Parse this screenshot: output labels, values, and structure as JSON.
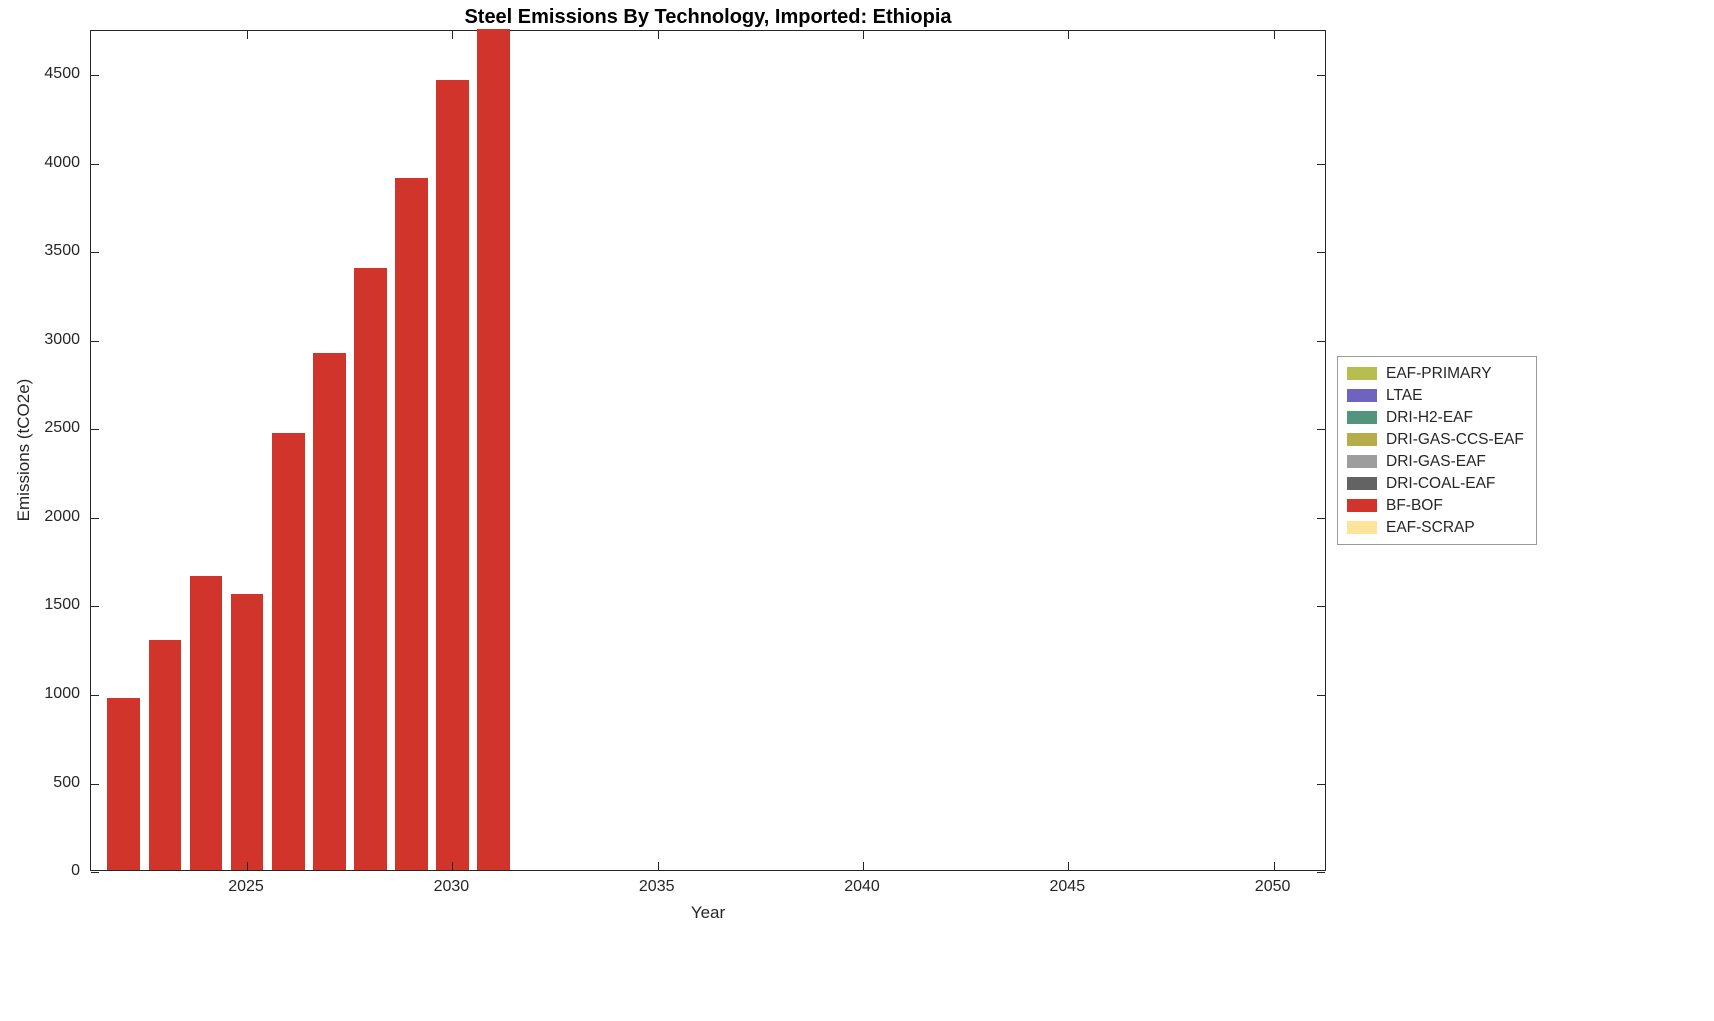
{
  "chart_data": {
    "type": "bar",
    "title": "Steel Emissions By Technology, Imported: Ethiopia",
    "xlabel": "Year",
    "ylabel": "Emissions (tCO2e)",
    "xlim": [
      2021.2,
      2051.3
    ],
    "ylim": [
      0,
      4750
    ],
    "x_ticks": [
      2025,
      2030,
      2035,
      2040,
      2045,
      2050
    ],
    "y_ticks": [
      0,
      500,
      1000,
      1500,
      2000,
      2500,
      3000,
      3500,
      4000,
      4500
    ],
    "bar_width_years": 0.8,
    "grid": false,
    "axis_color": "#262626",
    "series": [
      {
        "name": "BF-BOF",
        "color": "#d1342b",
        "x": [
          2022,
          2023,
          2024,
          2025,
          2026,
          2027,
          2028,
          2029,
          2030,
          2031
        ],
        "values": [
          970,
          1300,
          1660,
          1560,
          2470,
          2920,
          3400,
          3910,
          4460,
          5050
        ]
      }
    ],
    "legend": {
      "position": "right-outside",
      "entries": [
        {
          "label": "EAF-PRIMARY",
          "color": "#b5be4e"
        },
        {
          "label": "LTAE",
          "color": "#6f63c0"
        },
        {
          "label": "DRI-H2-EAF",
          "color": "#53957c"
        },
        {
          "label": "DRI-GAS-CCS-EAF",
          "color": "#b5ad4a"
        },
        {
          "label": "DRI-GAS-EAF",
          "color": "#9d9d9d"
        },
        {
          "label": "DRI-COAL-EAF",
          "color": "#636363"
        },
        {
          "label": "BF-BOF",
          "color": "#d1342b"
        },
        {
          "label": "EAF-SCRAP",
          "color": "#fce49b"
        }
      ]
    }
  }
}
